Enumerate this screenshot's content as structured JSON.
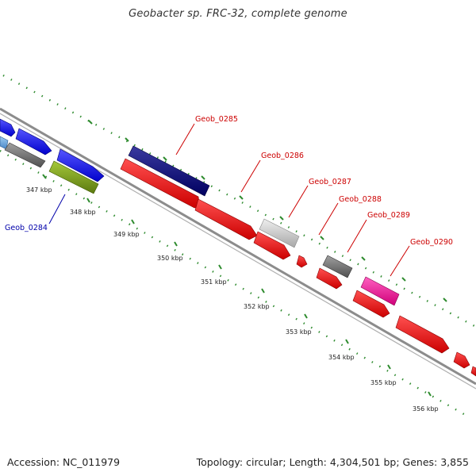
{
  "title": "Geobacter sp. FRC-32, complete genome",
  "footer": {
    "accession": "Accession: NC_011979",
    "summary": "Topology: circular; Length: 4,304,501 bp; Genes: 3,855"
  },
  "colors": {
    "backbone": "#8c8c8c",
    "tick": "#2e8b2e",
    "label_red": "#cc0000",
    "label_blue": "#0000aa"
  },
  "kbp_labels": [
    "347 kbp",
    "348 kbp",
    "349 kbp",
    "350 kbp",
    "351 kbp",
    "352 kbp",
    "353 kbp",
    "354 kbp",
    "355 kbp",
    "356 kbp"
  ],
  "genes": [
    {
      "id": "Geob_0284",
      "label": "Geob_0284",
      "color": "#8db41f"
    },
    {
      "id": "Geob_0285",
      "label": "Geob_0285",
      "color": "#000080"
    },
    {
      "id": "Geob_0286",
      "label": "Geob_0286",
      "color": "#ff0000"
    },
    {
      "id": "Geob_0287",
      "label": "Geob_0287",
      "color": "#c8c8c8"
    },
    {
      "id": "Geob_0288",
      "label": "Geob_0288",
      "color": "#ff0000"
    },
    {
      "id": "Geob_0289",
      "label": "Geob_0289",
      "color": "#707070"
    },
    {
      "id": "Geob_0290",
      "label": "Geob_0290",
      "color": "#ff1493"
    }
  ]
}
